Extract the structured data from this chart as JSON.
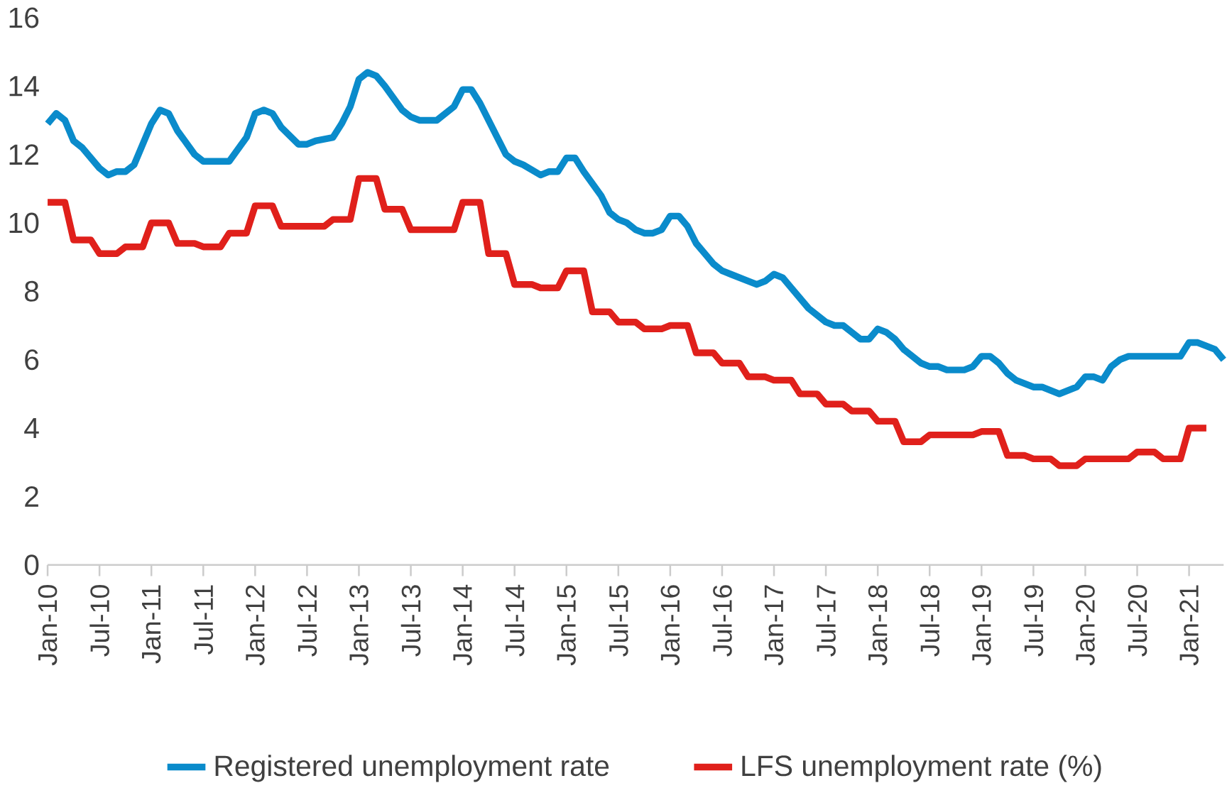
{
  "chart_data": {
    "type": "line",
    "legend": "bottom",
    "grid": false,
    "ylim": [
      0,
      16
    ],
    "yticks": [
      0,
      2,
      4,
      6,
      8,
      10,
      12,
      14,
      16
    ],
    "xlim": [
      "2010-01",
      "2021-05"
    ],
    "xticks": [
      {
        "value": "2010-01",
        "label": "Jan-10"
      },
      {
        "value": "2010-07",
        "label": "Jul-10"
      },
      {
        "value": "2011-01",
        "label": "Jan-11"
      },
      {
        "value": "2011-07",
        "label": "Jul-11"
      },
      {
        "value": "2012-01",
        "label": "Jan-12"
      },
      {
        "value": "2012-07",
        "label": "Jul-12"
      },
      {
        "value": "2013-01",
        "label": "Jan-13"
      },
      {
        "value": "2013-07",
        "label": "Jul-13"
      },
      {
        "value": "2014-01",
        "label": "Jan-14"
      },
      {
        "value": "2014-07",
        "label": "Jul-14"
      },
      {
        "value": "2015-01",
        "label": "Jan-15"
      },
      {
        "value": "2015-07",
        "label": "Jul-15"
      },
      {
        "value": "2016-01",
        "label": "Jan-16"
      },
      {
        "value": "2016-07",
        "label": "Jul-16"
      },
      {
        "value": "2017-01",
        "label": "Jan-17"
      },
      {
        "value": "2017-07",
        "label": "Jul-17"
      },
      {
        "value": "2018-01",
        "label": "Jan-18"
      },
      {
        "value": "2018-07",
        "label": "Jul-18"
      },
      {
        "value": "2019-01",
        "label": "Jan-19"
      },
      {
        "value": "2019-07",
        "label": "Jul-19"
      },
      {
        "value": "2020-01",
        "label": "Jan-20"
      },
      {
        "value": "2020-07",
        "label": "Jul-20"
      },
      {
        "value": "2021-01",
        "label": "Jan-21"
      }
    ],
    "series": [
      {
        "name": "Registered unemployment rate",
        "color": "#0a8bcb",
        "x": [
          "2010-01",
          "2010-02",
          "2010-03",
          "2010-04",
          "2010-05",
          "2010-07",
          "2010-08",
          "2010-09",
          "2010-10",
          "2010-11",
          "2011-01",
          "2011-02",
          "2011-03",
          "2011-04",
          "2011-06",
          "2011-07",
          "2011-10",
          "2011-12",
          "2012-01",
          "2012-02",
          "2012-03",
          "2012-04",
          "2012-06",
          "2012-07",
          "2012-08",
          "2012-10",
          "2012-11",
          "2012-12",
          "2013-01",
          "2013-02",
          "2013-03",
          "2013-04",
          "2013-06",
          "2013-07",
          "2013-08",
          "2013-10",
          "2013-12",
          "2014-01",
          "2014-02",
          "2014-03",
          "2014-05",
          "2014-06",
          "2014-07",
          "2014-08",
          "2014-10",
          "2014-11",
          "2014-12",
          "2015-01",
          "2015-02",
          "2015-03",
          "2015-05",
          "2015-06",
          "2015-07",
          "2015-08",
          "2015-09",
          "2015-10",
          "2015-11",
          "2015-12",
          "2016-01",
          "2016-02",
          "2016-03",
          "2016-04",
          "2016-05",
          "2016-06",
          "2016-07",
          "2016-08",
          "2016-10",
          "2016-11",
          "2016-12",
          "2017-01",
          "2017-02",
          "2017-03",
          "2017-05",
          "2017-07",
          "2017-08",
          "2017-09",
          "2017-10",
          "2017-11",
          "2017-12",
          "2018-01",
          "2018-02",
          "2018-03",
          "2018-04",
          "2018-05",
          "2018-06",
          "2018-07",
          "2018-08",
          "2018-09",
          "2018-10",
          "2018-11",
          "2018-12",
          "2019-01",
          "2019-02",
          "2019-03",
          "2019-04",
          "2019-05",
          "2019-06",
          "2019-07",
          "2019-08",
          "2019-09",
          "2019-10",
          "2019-11",
          "2019-12",
          "2020-01",
          "2020-02",
          "2020-03",
          "2020-04",
          "2020-05",
          "2020-06",
          "2020-12",
          "2021-01",
          "2021-02",
          "2021-03",
          "2021-04",
          "2021-05"
        ],
        "values": [
          12.9,
          13.2,
          13.0,
          12.4,
          12.2,
          11.6,
          11.4,
          11.5,
          11.5,
          11.7,
          12.9,
          13.3,
          13.2,
          12.7,
          12.0,
          11.8,
          11.8,
          12.5,
          13.2,
          13.3,
          13.2,
          12.8,
          12.3,
          12.3,
          12.4,
          12.5,
          12.9,
          13.4,
          14.2,
          14.4,
          14.3,
          14.0,
          13.3,
          13.1,
          13.0,
          13.0,
          13.4,
          13.9,
          13.9,
          13.5,
          12.5,
          12.0,
          11.8,
          11.7,
          11.4,
          11.5,
          11.5,
          11.9,
          11.9,
          11.5,
          10.8,
          10.3,
          10.1,
          10.0,
          9.8,
          9.7,
          9.7,
          9.8,
          10.2,
          10.2,
          9.9,
          9.4,
          9.1,
          8.8,
          8.6,
          8.5,
          8.3,
          8.2,
          8.3,
          8.5,
          8.4,
          8.1,
          7.5,
          7.1,
          7.0,
          7.0,
          6.8,
          6.6,
          6.6,
          6.9,
          6.8,
          6.6,
          6.3,
          6.1,
          5.9,
          5.8,
          5.8,
          5.7,
          5.7,
          5.7,
          5.8,
          6.1,
          6.1,
          5.9,
          5.6,
          5.4,
          5.3,
          5.2,
          5.2,
          5.1,
          5.0,
          5.1,
          5.2,
          5.5,
          5.5,
          5.4,
          5.8,
          6.0,
          6.1,
          6.1,
          6.5,
          6.5,
          6.4,
          6.3,
          6.0
        ]
      },
      {
        "name": "LFS unemployment rate (%)",
        "color": "#e0201b",
        "x": [
          "2010-01",
          "2010-03",
          "2010-04",
          "2010-06",
          "2010-07",
          "2010-09",
          "2010-10",
          "2010-12",
          "2011-01",
          "2011-03",
          "2011-04",
          "2011-06",
          "2011-07",
          "2011-09",
          "2011-10",
          "2011-12",
          "2012-01",
          "2012-03",
          "2012-04",
          "2012-06",
          "2012-07",
          "2012-09",
          "2012-10",
          "2012-12",
          "2013-01",
          "2013-03",
          "2013-04",
          "2013-06",
          "2013-07",
          "2013-09",
          "2013-10",
          "2013-12",
          "2014-01",
          "2014-03",
          "2014-04",
          "2014-06",
          "2014-07",
          "2014-09",
          "2014-10",
          "2014-12",
          "2015-01",
          "2015-03",
          "2015-04",
          "2015-06",
          "2015-07",
          "2015-09",
          "2015-10",
          "2015-12",
          "2016-01",
          "2016-03",
          "2016-04",
          "2016-06",
          "2016-07",
          "2016-09",
          "2016-10",
          "2016-12",
          "2017-01",
          "2017-03",
          "2017-04",
          "2017-06",
          "2017-07",
          "2017-09",
          "2017-10",
          "2017-12",
          "2018-01",
          "2018-03",
          "2018-04",
          "2018-06",
          "2018-07",
          "2018-09",
          "2018-10",
          "2018-12",
          "2019-01",
          "2019-03",
          "2019-04",
          "2019-06",
          "2019-07",
          "2019-09",
          "2019-10",
          "2019-12",
          "2020-01",
          "2020-03",
          "2020-04",
          "2020-06",
          "2020-07",
          "2020-09",
          "2020-10",
          "2020-12",
          "2021-01",
          "2021-03"
        ],
        "values": [
          10.6,
          10.6,
          9.5,
          9.5,
          9.1,
          9.1,
          9.3,
          9.3,
          10.0,
          10.0,
          9.4,
          9.4,
          9.3,
          9.3,
          9.7,
          9.7,
          10.5,
          10.5,
          9.9,
          9.9,
          9.9,
          9.9,
          10.1,
          10.1,
          11.3,
          11.3,
          10.4,
          10.4,
          9.8,
          9.8,
          9.8,
          9.8,
          10.6,
          10.6,
          9.1,
          9.1,
          8.2,
          8.2,
          8.1,
          8.1,
          8.6,
          8.6,
          7.4,
          7.4,
          7.1,
          7.1,
          6.9,
          6.9,
          7.0,
          7.0,
          6.2,
          6.2,
          5.9,
          5.9,
          5.5,
          5.5,
          5.4,
          5.4,
          5.0,
          5.0,
          4.7,
          4.7,
          4.5,
          4.5,
          4.2,
          4.2,
          3.6,
          3.6,
          3.8,
          3.8,
          3.8,
          3.8,
          3.9,
          3.9,
          3.2,
          3.2,
          3.1,
          3.1,
          2.9,
          2.9,
          3.1,
          3.1,
          3.1,
          3.1,
          3.3,
          3.3,
          3.1,
          3.1,
          4.0,
          4.0
        ]
      }
    ]
  }
}
